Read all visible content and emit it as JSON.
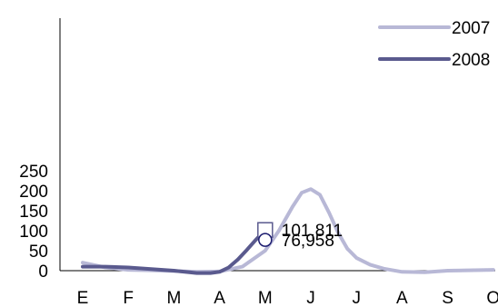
{
  "chart_data": {
    "type": "line",
    "categories": [
      "E",
      "F",
      "M",
      "A",
      "M",
      "J",
      "J",
      "A",
      "S",
      "O"
    ],
    "y_ticks": [
      "0",
      "50",
      "100",
      "150",
      "200",
      "250"
    ],
    "ylim": [
      -10,
      250
    ],
    "grid": false,
    "legend_placement": "top-right",
    "series": [
      {
        "name": "2007",
        "color": "#b8b8d6",
        "x": [
          0,
          0.5,
          1,
          1.5,
          2,
          2.5,
          3,
          3.5,
          4,
          4.3,
          4.6,
          4.8,
          5.0,
          5.2,
          5.4,
          5.6,
          5.8,
          6.0,
          6.3,
          6.6,
          7.0,
          7.5,
          8.0,
          9.0
        ],
        "values": [
          20,
          8,
          2,
          1,
          -1,
          -3,
          -2,
          10,
          50,
          100,
          160,
          195,
          204,
          190,
          145,
          95,
          55,
          32,
          15,
          5,
          -3,
          -4,
          0,
          2
        ]
      },
      {
        "name": "2008",
        "color": "#5a5a8e",
        "x": [
          0,
          0.5,
          1,
          1.5,
          2,
          2.5,
          2.8,
          3,
          3.2,
          3.4,
          3.6,
          3.8,
          4.0
        ],
        "values": [
          10,
          10,
          8,
          4,
          0,
          -6,
          -6,
          -3,
          8,
          28,
          52,
          78,
          101.811
        ]
      }
    ],
    "annotations": [
      {
        "label": "101,811",
        "x": 4,
        "y": 101.811,
        "marker": "square"
      },
      {
        "label": "76,958",
        "x": 4,
        "y": 76.958,
        "marker": "circle"
      }
    ]
  }
}
